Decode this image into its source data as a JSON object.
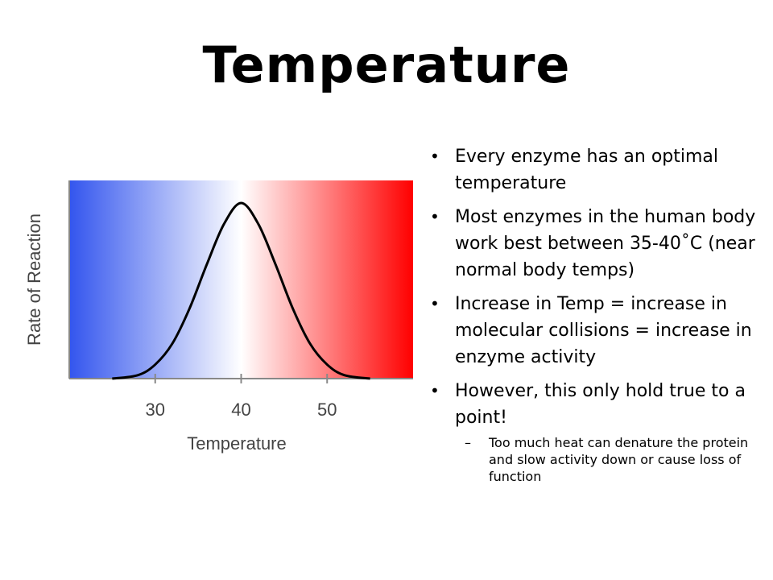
{
  "slide": {
    "title": "Temperature",
    "bullets": [
      {
        "text": "Every enzyme has an optimal temperature"
      },
      {
        "text": "Most enzymes in the human body work best between 35-40˚C (near normal body temps)"
      },
      {
        "text": "Increase in Temp = increase in molecular collisions = increase in enzyme activity"
      },
      {
        "text": "However, this only hold true to a point!"
      }
    ],
    "sub_bullets": [
      {
        "marker": "–",
        "text": " Too much heat can denature the protein and slow activity down or cause loss of function"
      }
    ]
  },
  "chart_data": {
    "type": "line",
    "xlabel": "Temperature",
    "ylabel": "Rate of Reaction",
    "xlim": [
      20,
      60
    ],
    "ylim": [
      0,
      1
    ],
    "xticks": [
      30,
      40,
      50
    ],
    "x": [
      25,
      28,
      30,
      32,
      34,
      36,
      38,
      40,
      42,
      44,
      46,
      48,
      50,
      52,
      55
    ],
    "y": [
      0.0,
      0.02,
      0.08,
      0.2,
      0.4,
      0.65,
      0.88,
      1.0,
      0.88,
      0.65,
      0.4,
      0.2,
      0.08,
      0.02,
      0.0
    ],
    "background_gradient": [
      "#3355ee",
      "#ffffff",
      "#ff0000"
    ],
    "line_color": "#000000"
  }
}
